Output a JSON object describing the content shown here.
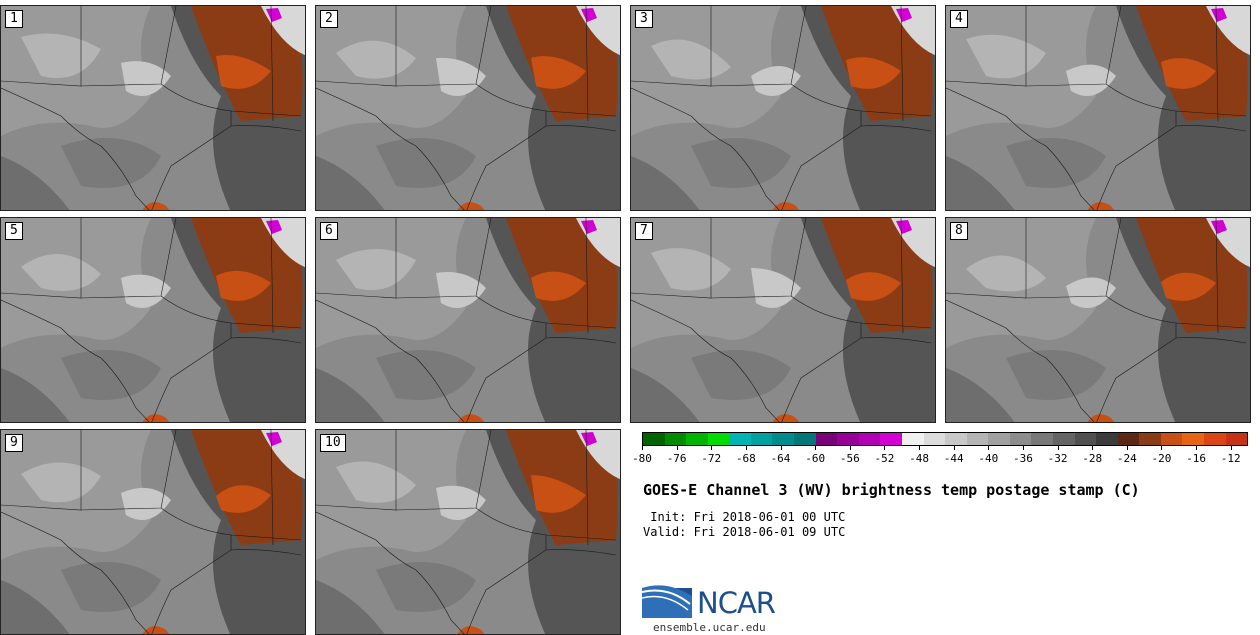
{
  "panels": [
    {
      "label": "1"
    },
    {
      "label": "2"
    },
    {
      "label": "3"
    },
    {
      "label": "4"
    },
    {
      "label": "5"
    },
    {
      "label": "6"
    },
    {
      "label": "7"
    },
    {
      "label": "8"
    },
    {
      "label": "9"
    },
    {
      "label": "10"
    }
  ],
  "colorbar": {
    "colors": [
      "#006400",
      "#008c00",
      "#00b400",
      "#00dc00",
      "#00b4b4",
      "#00a0a0",
      "#008c8c",
      "#007878",
      "#780078",
      "#960096",
      "#b400b4",
      "#d200d2",
      "#f0f0f0",
      "#dcdcdc",
      "#c8c8c8",
      "#b4b4b4",
      "#a0a0a0",
      "#8c8c8c",
      "#787878",
      "#646464",
      "#505050",
      "#3c3c3c",
      "#5a2814",
      "#8c3c14",
      "#c85014",
      "#e66414",
      "#dc4614",
      "#c83214"
    ],
    "tick_labels": [
      "-80",
      "-76",
      "-72",
      "-68",
      "-64",
      "-60",
      "-56",
      "-52",
      "-48",
      "-44",
      "-40",
      "-36",
      "-32",
      "-28",
      "-24",
      "-20",
      "-16",
      "-12"
    ],
    "min": -80,
    "max": -10
  },
  "title": "GOES-E Channel 3 (WV) brightness temp postage stamp (C)",
  "init": " Init: Fri 2018-06-01 00 UTC",
  "valid": "Valid: Fri 2018-06-01 09 UTC",
  "logo": {
    "text": "NCAR",
    "color": "#1d4f8f"
  },
  "url": "ensemble.ucar.edu"
}
